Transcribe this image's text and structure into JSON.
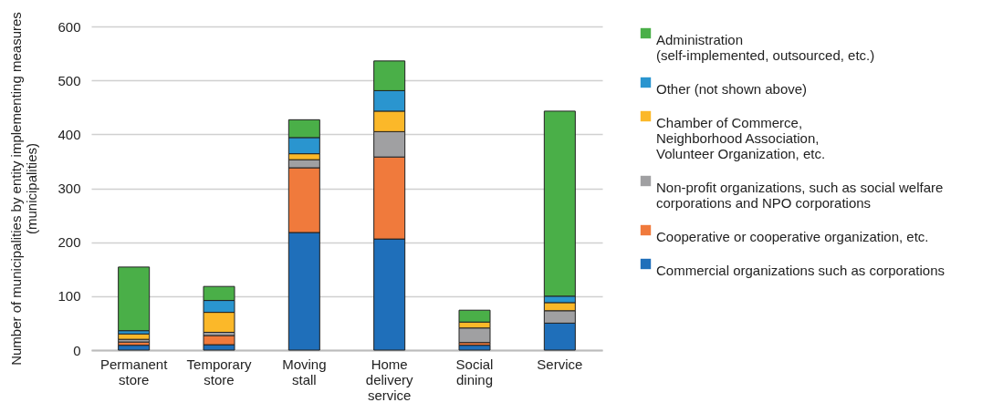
{
  "chart_data": {
    "type": "bar",
    "stacked": true,
    "ylabel": "Number of municipalities by entity implementing measures\n(municipalities)",
    "categories": [
      "Permanent\nstore",
      "Temporary\nstore",
      "Moving\nstall",
      "Home\ndelivery\nservice",
      "Social\ndining",
      "Service"
    ],
    "series": [
      {
        "name": "Commercial organizations such as corporations",
        "color": "#1f6fba",
        "values": [
          9,
          10,
          218,
          206,
          9,
          50
        ]
      },
      {
        "name": "Cooperative or cooperative organization, etc.",
        "color": "#f07a3c",
        "values": [
          6,
          17,
          120,
          152,
          5,
          0
        ]
      },
      {
        "name": "Non-profit organizations, such as social welfare\ncorporations and NPO corporations",
        "color": "#a0a0a2",
        "values": [
          5,
          6,
          15,
          47,
          27,
          23
        ]
      },
      {
        "name": "Chamber of Commerce,\nNeighborhood Association,\nVolunteer Organization, etc.",
        "color": "#fbb829",
        "values": [
          10,
          37,
          11,
          38,
          11,
          15
        ]
      },
      {
        "name": "Other (not shown above)",
        "color": "#2a95cf",
        "values": [
          6,
          22,
          30,
          38,
          0,
          12
        ]
      },
      {
        "name": "Administration\n(self-implemented, outsourced, etc.)",
        "color": "#4aaf48",
        "values": [
          118,
          26,
          33,
          55,
          22,
          343
        ]
      }
    ],
    "ylim": [
      0,
      600
    ],
    "yticks": [
      0,
      100,
      200,
      300,
      400,
      500,
      600
    ],
    "grid": "y",
    "legend": "right"
  }
}
